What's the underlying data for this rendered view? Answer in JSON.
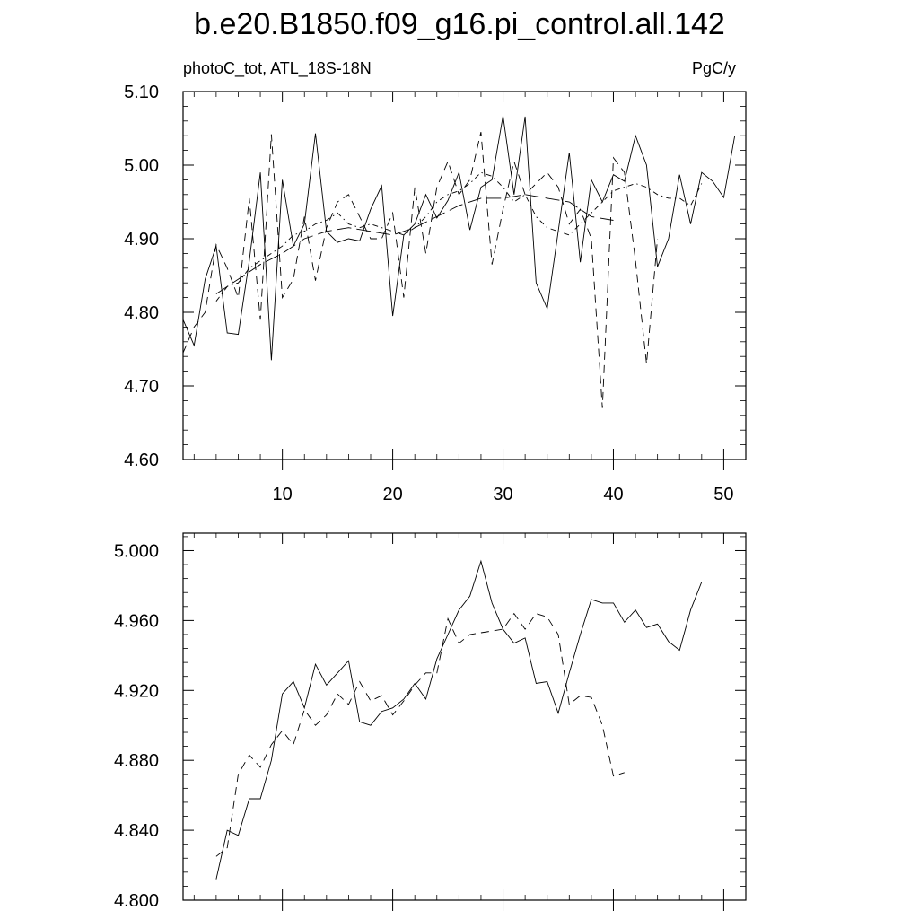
{
  "title": "b.e20.B1850.f09_g16.pi_control.all.142",
  "chart_data": [
    {
      "type": "line",
      "left_label": "photoC_tot, ATL_18S-18N",
      "right_label": "PgC/y",
      "xlim": [
        1,
        52
      ],
      "ylim": [
        4.6,
        5.1
      ],
      "x_ticks": [
        10,
        20,
        30,
        40,
        50
      ],
      "x_tick_labels": [
        "10",
        "20",
        "30",
        "40",
        "50"
      ],
      "y_ticks": [
        4.6,
        4.7,
        4.8,
        4.9,
        5.0,
        5.1
      ],
      "y_tick_labels": [
        "4.60",
        "4.70",
        "4.80",
        "4.90",
        "5.00",
        "5.10"
      ],
      "series": [
        {
          "style": "solid",
          "x": [
            1,
            2,
            3,
            4,
            5,
            6,
            7,
            8,
            9,
            10,
            11,
            12,
            13,
            14,
            15,
            16,
            17,
            18,
            19,
            20,
            21,
            22,
            23,
            24,
            25,
            26,
            27,
            28,
            29,
            30,
            31,
            32,
            33,
            34,
            35,
            36,
            37,
            38,
            39,
            40,
            41,
            42,
            43,
            44,
            45,
            46,
            47,
            48,
            49,
            50,
            51
          ],
          "values": [
            4.79,
            4.755,
            4.845,
            4.89,
            4.772,
            4.77,
            4.87,
            4.99,
            4.735,
            4.98,
            4.89,
            4.92,
            5.043,
            4.91,
            4.895,
            4.9,
            4.897,
            4.94,
            4.972,
            4.795,
            4.905,
            4.92,
            4.96,
            4.928,
            4.952,
            4.99,
            4.912,
            4.97,
            4.98,
            5.067,
            4.96,
            5.066,
            4.84,
            4.805,
            4.91,
            5.017,
            4.868,
            4.98,
            4.95,
            4.987,
            4.978,
            5.04,
            5.0,
            4.862,
            4.9,
            4.987,
            4.92,
            4.99,
            4.978,
            4.956,
            5.04
          ]
        },
        {
          "style": "dashed",
          "x": [
            1,
            2,
            3,
            4,
            5,
            6,
            7,
            8,
            9,
            10,
            11,
            12,
            13,
            14,
            15,
            16,
            17,
            18,
            19,
            20,
            21,
            22,
            23,
            24,
            25,
            26,
            27,
            28,
            29,
            30,
            31,
            32,
            33,
            34,
            35,
            36,
            37,
            38,
            39,
            40,
            41,
            42,
            43,
            44
          ],
          "values": [
            4.745,
            4.78,
            4.8,
            4.892,
            4.86,
            4.82,
            4.955,
            4.79,
            5.042,
            4.82,
            4.845,
            4.93,
            4.843,
            4.915,
            4.95,
            4.96,
            4.93,
            4.9,
            4.9,
            4.935,
            4.82,
            4.97,
            4.88,
            4.97,
            5.005,
            4.96,
            4.98,
            5.045,
            4.865,
            4.94,
            5.005,
            4.96,
            4.975,
            4.99,
            4.97,
            4.92,
            4.94,
            4.9,
            4.67,
            5.01,
            4.99,
            4.87,
            4.73,
            4.9
          ]
        },
        {
          "style": "dash-dot",
          "x": [
            4,
            5,
            6,
            7,
            8,
            9,
            10,
            11,
            12,
            13,
            14,
            15,
            16,
            17,
            18,
            19,
            20,
            21,
            22,
            23,
            24,
            25,
            26,
            27,
            28,
            29,
            30,
            31,
            32,
            33,
            34,
            35,
            36,
            37,
            38,
            39,
            40,
            41,
            42,
            43,
            44,
            45,
            46,
            47,
            48
          ],
          "values": [
            4.815,
            4.835,
            4.84,
            4.86,
            4.87,
            4.88,
            4.89,
            4.905,
            4.91,
            4.92,
            4.925,
            4.935,
            4.92,
            4.915,
            4.92,
            4.915,
            4.91,
            4.905,
            4.915,
            4.93,
            4.95,
            4.96,
            4.965,
            4.975,
            4.99,
            4.985,
            4.97,
            4.95,
            4.96,
            4.93,
            4.915,
            4.91,
            4.905,
            4.92,
            4.935,
            4.95,
            4.965,
            4.97,
            4.975,
            4.97,
            4.96,
            4.955,
            4.955,
            4.945,
            4.975
          ]
        },
        {
          "style": "long-dash",
          "x": [
            4,
            6,
            8,
            10,
            12,
            14,
            16,
            18,
            20,
            22,
            24,
            26,
            28,
            30,
            32,
            34,
            36,
            38,
            40
          ],
          "values": [
            4.825,
            4.845,
            4.865,
            4.88,
            4.9,
            4.91,
            4.915,
            4.91,
            4.905,
            4.915,
            4.93,
            4.945,
            4.955,
            4.955,
            4.96,
            4.955,
            4.95,
            4.93,
            4.925
          ]
        }
      ]
    },
    {
      "type": "line",
      "xlim": [
        1,
        52
      ],
      "ylim": [
        4.8,
        5.01
      ],
      "x_ticks": [
        10,
        20,
        30,
        40,
        50
      ],
      "y_ticks": [
        4.8,
        4.84,
        4.88,
        4.92,
        4.96,
        5.0
      ],
      "y_tick_labels": [
        "4.800",
        "4.840",
        "4.880",
        "4.920",
        "4.960",
        "5.000"
      ],
      "series": [
        {
          "style": "solid",
          "x": [
            4,
            5,
            6,
            7,
            8,
            9,
            10,
            11,
            12,
            13,
            14,
            15,
            16,
            17,
            18,
            19,
            20,
            21,
            22,
            23,
            24,
            25,
            26,
            27,
            28,
            29,
            30,
            31,
            32,
            33,
            34,
            35,
            36,
            37,
            38,
            39,
            40,
            41,
            42,
            43,
            44,
            45,
            46,
            47,
            48
          ],
          "values": [
            4.812,
            4.84,
            4.837,
            4.858,
            4.858,
            4.88,
            4.918,
            4.925,
            4.91,
            4.935,
            4.923,
            4.93,
            4.937,
            4.902,
            4.9,
            4.908,
            4.91,
            4.915,
            4.924,
            4.915,
            4.938,
            4.952,
            4.966,
            4.974,
            4.994,
            4.97,
            4.955,
            4.947,
            4.95,
            4.924,
            4.925,
            4.907,
            4.93,
            4.952,
            4.972,
            4.97,
            4.97,
            4.959,
            4.966,
            4.956,
            4.958,
            4.948,
            4.943,
            4.966,
            4.982
          ]
        },
        {
          "style": "dashed",
          "x": [
            4,
            5,
            6,
            7,
            8,
            9,
            10,
            11,
            12,
            13,
            14,
            15,
            16,
            17,
            18,
            19,
            20,
            21,
            22,
            23,
            24,
            25,
            26,
            27,
            28,
            29,
            30,
            31,
            32,
            33,
            34,
            35,
            36,
            37,
            38,
            39,
            40,
            41
          ],
          "values": [
            4.825,
            4.83,
            4.872,
            4.883,
            4.876,
            4.889,
            4.897,
            4.889,
            4.909,
            4.9,
            4.906,
            4.918,
            4.912,
            4.925,
            4.914,
            4.917,
            4.906,
            4.914,
            4.923,
            4.93,
            4.93,
            4.961,
            4.947,
            4.952,
            4.953,
            4.954,
            4.955,
            4.964,
            4.955,
            4.964,
            4.962,
            4.952,
            4.912,
            4.917,
            4.916,
            4.9,
            4.871,
            4.873
          ]
        }
      ]
    }
  ]
}
